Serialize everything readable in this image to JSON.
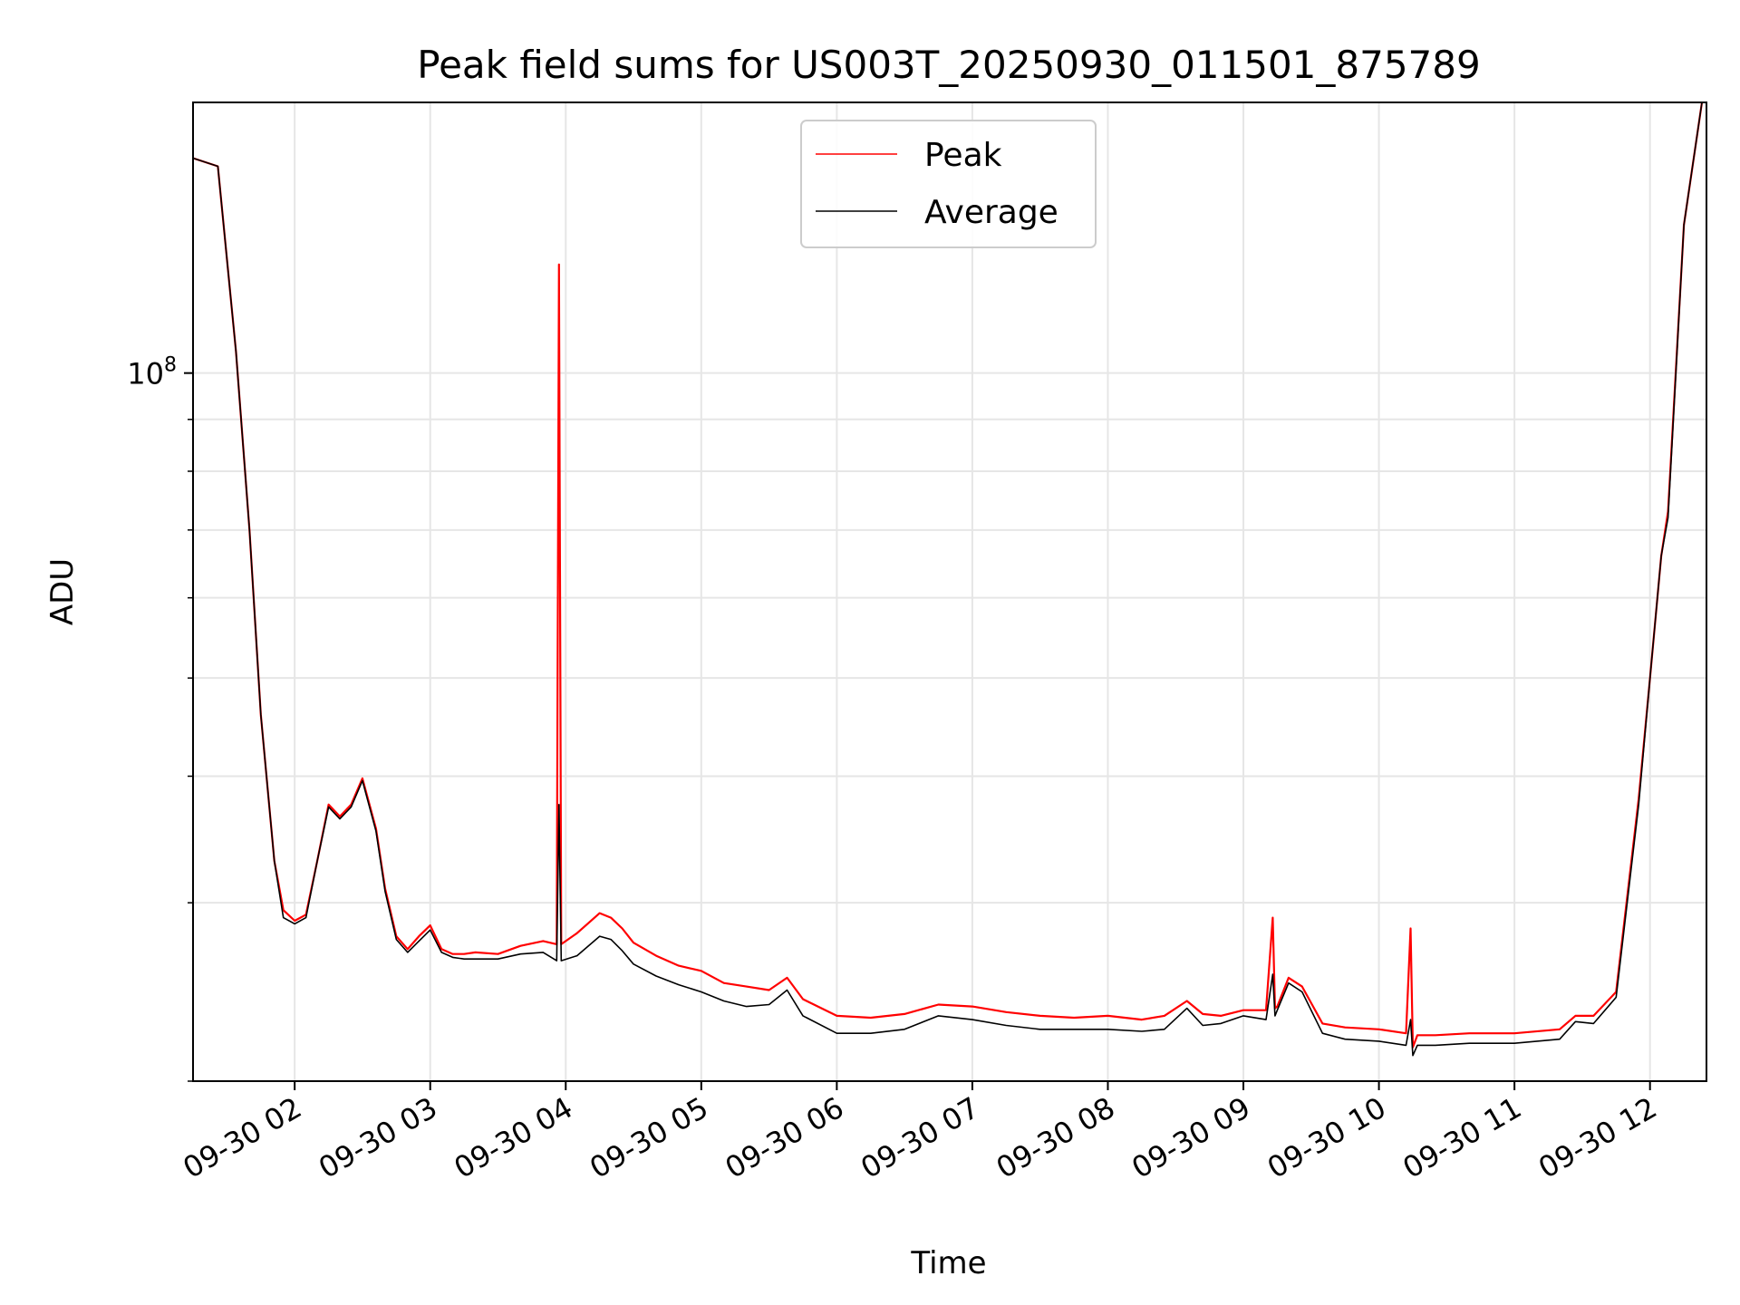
{
  "chart_data": {
    "type": "line",
    "title": "Peak field sums for US003T_20250930_011501_875789",
    "xlabel": "Time",
    "ylabel": "ADU",
    "yscale": "log",
    "ytick_label": {
      "base": "10",
      "exponent": "8"
    },
    "xlim": [
      "2025-09-30T01:15",
      "2025-09-30T12:25"
    ],
    "ylim": [
      20000000,
      185000000
    ],
    "x_ticks": [
      "09-30 02",
      "09-30 03",
      "09-30 04",
      "09-30 05",
      "09-30 06",
      "09-30 07",
      "09-30 08",
      "09-30 09",
      "09-30 10",
      "09-30 11",
      "09-30 12"
    ],
    "grid": true,
    "legend": {
      "position": "top-center",
      "entries": [
        "Peak",
        "Average"
      ]
    },
    "series": [
      {
        "name": "Peak",
        "color": "#ff0000",
        "x": [
          "2025-09-30T01:15",
          "2025-09-30T01:26",
          "2025-09-30T01:34",
          "2025-09-30T01:40",
          "2025-09-30T01:45",
          "2025-09-30T01:51",
          "2025-09-30T01:55",
          "2025-09-30T02:00",
          "2025-09-30T02:05",
          "2025-09-30T02:10",
          "2025-09-30T02:15",
          "2025-09-30T02:20",
          "2025-09-30T02:25",
          "2025-09-30T02:30",
          "2025-09-30T02:36",
          "2025-09-30T02:40",
          "2025-09-30T02:45",
          "2025-09-30T02:50",
          "2025-09-30T02:55",
          "2025-09-30T03:00",
          "2025-09-30T03:05",
          "2025-09-30T03:10",
          "2025-09-30T03:15",
          "2025-09-30T03:20",
          "2025-09-30T03:30",
          "2025-09-30T03:40",
          "2025-09-30T03:50",
          "2025-09-30T03:56",
          "2025-09-30T03:57",
          "2025-09-30T03:58",
          "2025-09-30T04:05",
          "2025-09-30T04:15",
          "2025-09-30T04:20",
          "2025-09-30T04:25",
          "2025-09-30T04:30",
          "2025-09-30T04:40",
          "2025-09-30T04:50",
          "2025-09-30T05:00",
          "2025-09-30T05:10",
          "2025-09-30T05:20",
          "2025-09-30T05:30",
          "2025-09-30T05:38",
          "2025-09-30T05:45",
          "2025-09-30T06:00",
          "2025-09-30T06:15",
          "2025-09-30T06:30",
          "2025-09-30T06:45",
          "2025-09-30T07:00",
          "2025-09-30T07:15",
          "2025-09-30T07:30",
          "2025-09-30T07:45",
          "2025-09-30T08:00",
          "2025-09-30T08:15",
          "2025-09-30T08:25",
          "2025-09-30T08:35",
          "2025-09-30T08:42",
          "2025-09-30T08:50",
          "2025-09-30T09:00",
          "2025-09-30T09:10",
          "2025-09-30T09:13",
          "2025-09-30T09:14",
          "2025-09-30T09:15",
          "2025-09-30T09:20",
          "2025-09-30T09:26",
          "2025-09-30T09:35",
          "2025-09-30T09:45",
          "2025-09-30T10:00",
          "2025-09-30T10:12",
          "2025-09-30T10:14",
          "2025-09-30T10:15",
          "2025-09-30T10:17",
          "2025-09-30T10:25",
          "2025-09-30T10:40",
          "2025-09-30T11:00",
          "2025-09-30T11:20",
          "2025-09-30T11:27",
          "2025-09-30T11:35",
          "2025-09-30T11:45",
          "2025-09-30T11:55",
          "2025-09-30T12:00",
          "2025-09-30T12:05",
          "2025-09-30T12:08",
          "2025-09-30T12:15",
          "2025-09-30T12:23"
        ],
        "y": [
          163000000,
          160000000,
          105000000,
          70000000,
          46000000,
          33000000,
          29500000,
          28800000,
          29200000,
          33000000,
          37500000,
          36500000,
          37500000,
          39800000,
          35500000,
          31000000,
          27800000,
          27000000,
          27800000,
          28500000,
          27000000,
          26700000,
          26700000,
          26800000,
          26700000,
          27200000,
          27500000,
          27300000,
          128000000,
          27300000,
          28000000,
          29300000,
          29000000,
          28300000,
          27400000,
          26600000,
          26000000,
          25700000,
          25000000,
          24800000,
          24600000,
          25300000,
          24100000,
          23200000,
          23100000,
          23300000,
          23800000,
          23700000,
          23400000,
          23200000,
          23100000,
          23200000,
          23000000,
          23200000,
          24000000,
          23300000,
          23200000,
          23500000,
          23500000,
          29000000,
          23600000,
          23700000,
          25300000,
          24800000,
          22800000,
          22600000,
          22500000,
          22300000,
          28300000,
          21600000,
          22200000,
          22200000,
          22300000,
          22300000,
          22500000,
          23200000,
          23200000,
          24500000,
          38000000,
          50000000,
          66000000,
          73000000,
          140000000,
          185000000
        ]
      },
      {
        "name": "Average",
        "color": "#000000",
        "x": [
          "2025-09-30T01:15",
          "2025-09-30T01:26",
          "2025-09-30T01:34",
          "2025-09-30T01:40",
          "2025-09-30T01:45",
          "2025-09-30T01:51",
          "2025-09-30T01:55",
          "2025-09-30T02:00",
          "2025-09-30T02:05",
          "2025-09-30T02:10",
          "2025-09-30T02:15",
          "2025-09-30T02:20",
          "2025-09-30T02:25",
          "2025-09-30T02:30",
          "2025-09-30T02:36",
          "2025-09-30T02:40",
          "2025-09-30T02:45",
          "2025-09-30T02:50",
          "2025-09-30T02:55",
          "2025-09-30T03:00",
          "2025-09-30T03:05",
          "2025-09-30T03:10",
          "2025-09-30T03:15",
          "2025-09-30T03:20",
          "2025-09-30T03:30",
          "2025-09-30T03:40",
          "2025-09-30T03:50",
          "2025-09-30T03:56",
          "2025-09-30T03:57",
          "2025-09-30T03:58",
          "2025-09-30T04:05",
          "2025-09-30T04:15",
          "2025-09-30T04:20",
          "2025-09-30T04:25",
          "2025-09-30T04:30",
          "2025-09-30T04:40",
          "2025-09-30T04:50",
          "2025-09-30T05:00",
          "2025-09-30T05:10",
          "2025-09-30T05:20",
          "2025-09-30T05:30",
          "2025-09-30T05:38",
          "2025-09-30T05:45",
          "2025-09-30T06:00",
          "2025-09-30T06:15",
          "2025-09-30T06:30",
          "2025-09-30T06:45",
          "2025-09-30T07:00",
          "2025-09-30T07:15",
          "2025-09-30T07:30",
          "2025-09-30T07:45",
          "2025-09-30T08:00",
          "2025-09-30T08:15",
          "2025-09-30T08:25",
          "2025-09-30T08:35",
          "2025-09-30T08:42",
          "2025-09-30T08:50",
          "2025-09-30T09:00",
          "2025-09-30T09:10",
          "2025-09-30T09:13",
          "2025-09-30T09:14",
          "2025-09-30T09:15",
          "2025-09-30T09:20",
          "2025-09-30T09:26",
          "2025-09-30T09:35",
          "2025-09-30T09:45",
          "2025-09-30T10:00",
          "2025-09-30T10:12",
          "2025-09-30T10:14",
          "2025-09-30T10:15",
          "2025-09-30T10:17",
          "2025-09-30T10:25",
          "2025-09-30T10:40",
          "2025-09-30T11:00",
          "2025-09-30T11:20",
          "2025-09-30T11:27",
          "2025-09-30T11:35",
          "2025-09-30T11:45",
          "2025-09-30T11:55",
          "2025-09-30T12:00",
          "2025-09-30T12:05",
          "2025-09-30T12:08",
          "2025-09-30T12:15",
          "2025-09-30T12:23"
        ],
        "y": [
          163000000,
          160000000,
          105000000,
          70000000,
          46000000,
          33000000,
          29000000,
          28600000,
          29000000,
          33000000,
          37300000,
          36300000,
          37300000,
          39600000,
          35300000,
          30800000,
          27600000,
          26800000,
          27500000,
          28200000,
          26800000,
          26500000,
          26400000,
          26400000,
          26400000,
          26700000,
          26800000,
          26300000,
          37500000,
          26300000,
          26600000,
          27800000,
          27600000,
          26900000,
          26100000,
          25400000,
          24900000,
          24500000,
          24000000,
          23700000,
          23800000,
          24600000,
          23200000,
          22300000,
          22300000,
          22500000,
          23200000,
          23000000,
          22700000,
          22500000,
          22500000,
          22500000,
          22400000,
          22500000,
          23600000,
          22700000,
          22800000,
          23200000,
          23000000,
          25500000,
          23200000,
          23500000,
          25000000,
          24500000,
          22300000,
          22000000,
          21900000,
          21700000,
          23000000,
          21200000,
          21700000,
          21700000,
          21800000,
          21800000,
          22000000,
          22900000,
          22800000,
          24200000,
          37500000,
          50000000,
          66000000,
          72000000,
          140000000,
          185000000
        ]
      }
    ]
  }
}
